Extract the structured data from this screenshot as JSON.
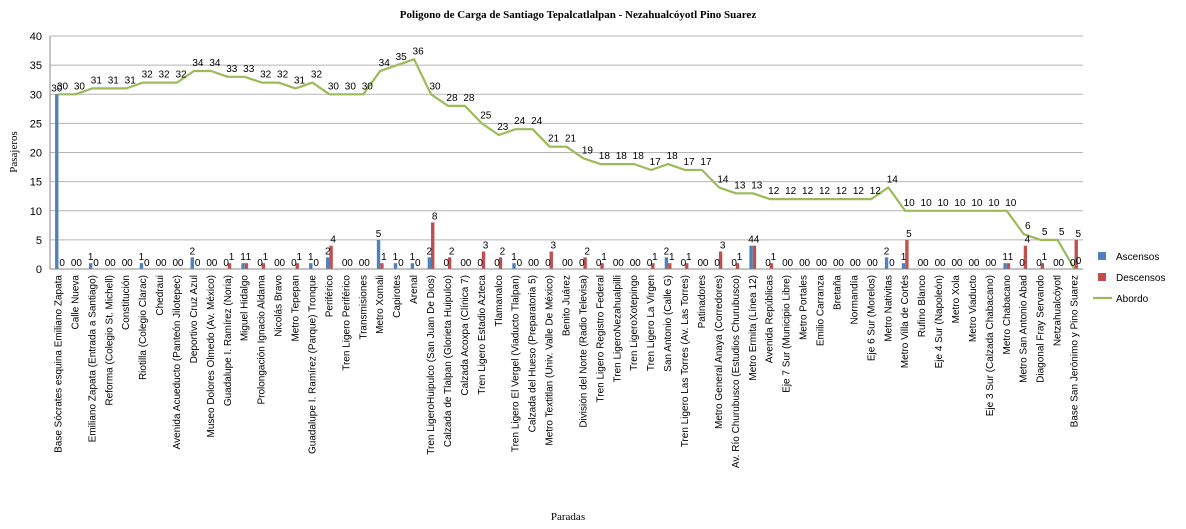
{
  "chart_data": {
    "type": "bar",
    "title": "Poligono de Carga de Santiago Tepalcatlalpan - Nezahualcóyotl Pino Suarez",
    "xlabel": "Paradas",
    "ylabel": "Pasajeros",
    "ylim": [
      0,
      40
    ],
    "yticks": [
      0,
      5,
      10,
      15,
      20,
      25,
      30,
      35,
      40
    ],
    "grid": true,
    "legend_position": "right",
    "categories": [
      "Base Sócrates esquina Emiliano Zapata",
      "Calle Nueva",
      "Emiliano Zapata (Entrada a Santiago)",
      "Reforma (Colegio St. Michell)",
      "Constitución",
      "Riotilla (Colegio Clarac)",
      "Chedraui",
      "Avenida Acueducto (Panteón Jilotepec)",
      "Deportivo Cruz Azul",
      "Museo Dolores Olmedo (Av. México)",
      "Guadalupe I. Ramírez (Noria)",
      "Miguel Hidalgo",
      "Prolongación Ignacio Aldama",
      "Nicolás Bravo",
      "Metro Tepepan",
      "Guadalupe I. Ramírez (Parque) Tronque",
      "Periférico",
      "Tren Ligero Periférico",
      "Transmisiones",
      "Metro Xomali",
      "Capirotes",
      "Arenal",
      "Tren LigeroHuipulco (San Juan De Dios)",
      "Calzada de Tlalpan (Glorieta Huipulco)",
      "Calzada Acoxpa (Clínica 7)",
      "Tren Ligero Estadio Azteca",
      "Tlamanalco",
      "Tren Ligero El Vergel (Viaducto Tlalpan)",
      "Calzada del Hueso (Preparatoria 5)",
      "Metro Textitlan (Univ. Valle De México)",
      "Benito Juárez",
      "División del Norte (Radio Televisa)",
      "Tren Ligero Registro Federal",
      "Tren LigeroNezahualpilli",
      "Tren LigeroXotepingo",
      "Tren Ligero La Virgen",
      "San Antonio (Calle G)",
      "Tren Ligero Las Torres (Av. Las Torres)",
      "Patinadores",
      "Metro General Anaya (Corredores)",
      "Av. Río Churubusco (Estudios Churubusco)",
      "Metro Ermita (Línea 12)",
      "Avenida Repúblicas",
      "Eje 7 Sur (Municipio Libre)",
      "Metro Portales",
      "Emilio Carranza",
      "Bretaña",
      "Normandía",
      "Eje 6 Sur (Morelos)",
      "Metro Nativitas",
      "Metro Villa de Cortés",
      "Rufino Blanco",
      "Eje 4 Sur (Napoleón)",
      "Metro Xola",
      "Metro Viaducto",
      "Eje 3 Sur (Calzada Chabacano)",
      "Metro Chabacano",
      "Metro San Antonio Abad",
      "Diagonal Fray Servando",
      "Netzahualcóyotl",
      "Base San Jerónimo y Pino Suarez"
    ],
    "series": [
      {
        "name": "Ascensos",
        "type": "bar",
        "color": "#4F81BD",
        "values": [
          30,
          0,
          1,
          0,
          0,
          1,
          0,
          0,
          2,
          0,
          0,
          1,
          0,
          0,
          0,
          1,
          2,
          0,
          0,
          5,
          1,
          1,
          2,
          0,
          0,
          0,
          0,
          1,
          0,
          0,
          0,
          0,
          0,
          0,
          0,
          0,
          2,
          0,
          0,
          0,
          0,
          4,
          0,
          0,
          0,
          0,
          0,
          0,
          0,
          2,
          1,
          0,
          0,
          0,
          0,
          0,
          1,
          0,
          0,
          0,
          0
        ]
      },
      {
        "name": "Descensos",
        "type": "bar",
        "color": "#C0504D",
        "values": [
          0,
          0,
          0,
          0,
          0,
          0,
          0,
          0,
          0,
          0,
          1,
          1,
          1,
          0,
          1,
          0,
          4,
          0,
          0,
          1,
          0,
          0,
          8,
          2,
          0,
          3,
          2,
          0,
          0,
          3,
          0,
          2,
          1,
          0,
          0,
          1,
          1,
          1,
          0,
          3,
          1,
          4,
          1,
          0,
          0,
          0,
          0,
          0,
          0,
          0,
          5,
          0,
          0,
          0,
          0,
          0,
          1,
          4,
          1,
          0,
          5
        ]
      },
      {
        "name": "Abordo",
        "type": "line",
        "color": "#9BBB59",
        "values": [
          30,
          30,
          31,
          31,
          31,
          32,
          32,
          32,
          34,
          34,
          33,
          33,
          32,
          32,
          31,
          32,
          30,
          30,
          30,
          34,
          35,
          36,
          30,
          28,
          28,
          25,
          23,
          24,
          24,
          21,
          21,
          19,
          18,
          18,
          18,
          17,
          18,
          17,
          17,
          14,
          13,
          13,
          12,
          12,
          12,
          12,
          12,
          12,
          12,
          14,
          10,
          10,
          10,
          10,
          10,
          10,
          10,
          6,
          5,
          5,
          0
        ]
      }
    ]
  }
}
